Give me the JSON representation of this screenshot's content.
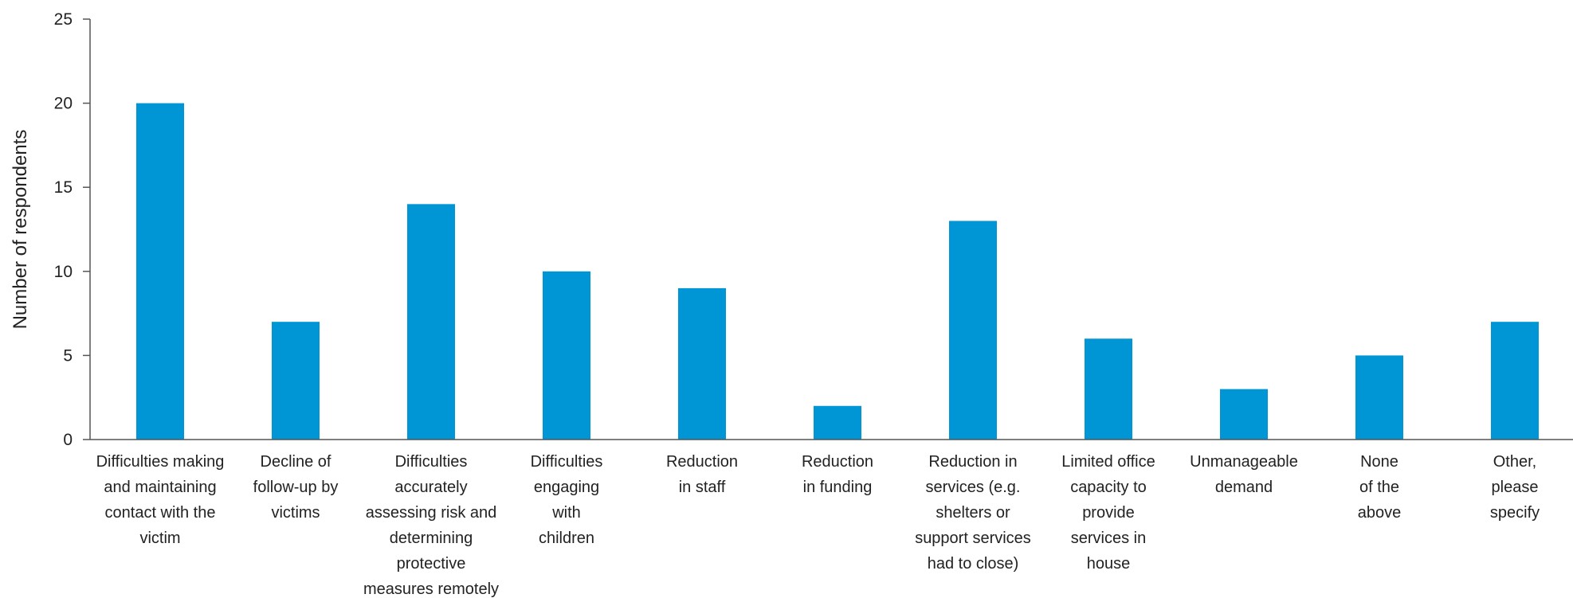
{
  "chart_data": {
    "type": "bar",
    "ylabel": "Number of respondents",
    "ylim": [
      0,
      25
    ],
    "yticks": [
      0,
      5,
      10,
      15,
      20,
      25
    ],
    "bar_color": "#0096d6",
    "grid": false,
    "categories": [
      [
        "Difficulties making",
        "and maintaining",
        "contact with the",
        "victim"
      ],
      [
        "Decline of",
        "follow-up by",
        "victims"
      ],
      [
        "Difficulties",
        "accurately",
        "assessing risk and",
        "determining",
        "protective",
        "measures remotely"
      ],
      [
        "Difficulties",
        "engaging",
        "with",
        "children"
      ],
      [
        "Reduction",
        "in staff"
      ],
      [
        "Reduction",
        "in funding"
      ],
      [
        "Reduction in",
        "services (e.g.",
        "shelters or",
        "support services",
        "had to close)"
      ],
      [
        "Limited office",
        "capacity to",
        "provide",
        "services in",
        "house"
      ],
      [
        "Unmanageable",
        "demand"
      ],
      [
        "None",
        "of the",
        "above"
      ],
      [
        "Other,",
        "please",
        "specify"
      ]
    ],
    "values": [
      20,
      7,
      14,
      10,
      9,
      2,
      13,
      6,
      3,
      5,
      7
    ]
  }
}
